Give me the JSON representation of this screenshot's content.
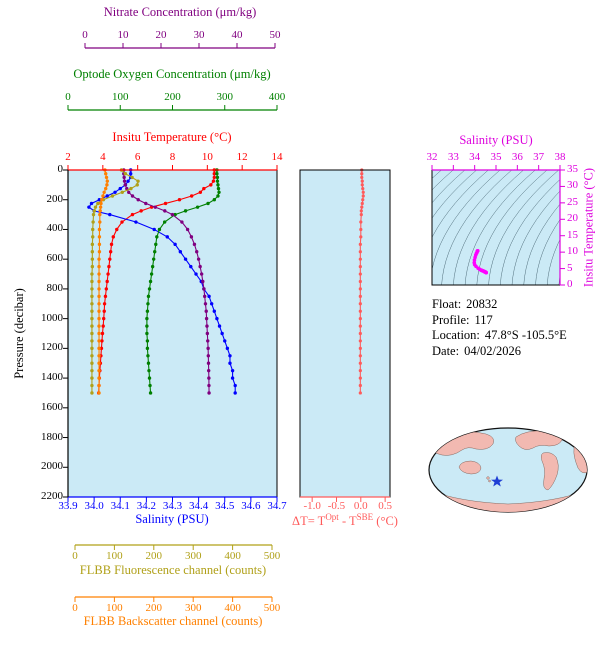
{
  "axes": {
    "pressure": {
      "title": "Pressure (decibar)",
      "min": 0,
      "max": 2200,
      "ticks": [
        0,
        200,
        400,
        600,
        800,
        1000,
        1200,
        1400,
        1600,
        1800,
        2000,
        2200
      ],
      "color": "#000000"
    },
    "nitrate": {
      "title": "Nitrate Concentration (μm/kg)",
      "min": 0,
      "max": 50,
      "ticks": [
        0,
        10,
        20,
        30,
        40,
        50
      ],
      "color": "#800080"
    },
    "oxygen": {
      "title": "Optode Oxygen Concentration (μm/kg)",
      "min": 0,
      "max": 400,
      "ticks": [
        0,
        100,
        200,
        300,
        400
      ],
      "color": "#008000"
    },
    "temperature": {
      "title": "Insitu Temperature (°C)",
      "min": 2,
      "max": 14,
      "ticks": [
        2,
        4,
        6,
        8,
        10,
        12,
        14
      ],
      "color": "#ff0000"
    },
    "salinity": {
      "title": "Salinity (PSU)",
      "min": 33.9,
      "max": 34.7,
      "ticks": [
        "33.9",
        "34.0",
        "34.1",
        "34.2",
        "34.3",
        "34.4",
        "34.5",
        "34.6",
        "34.7"
      ],
      "color": "#0000ff"
    },
    "fluorescence": {
      "title": "FLBB Fluorescence channel (counts)",
      "min": 0,
      "max": 500,
      "ticks": [
        0,
        100,
        200,
        300,
        400,
        500
      ],
      "color": "#b0a018"
    },
    "backscatter": {
      "title": "FLBB Backscatter channel (counts)",
      "min": 0,
      "max": 500,
      "ticks": [
        0,
        100,
        200,
        300,
        400,
        500
      ],
      "color": "#ff8000"
    },
    "delta_t": {
      "title_prefix": "ΔT= T",
      "title_sup1": "Opt",
      "title_mid": " - T",
      "title_sup2": "SBE",
      "title_suffix": " (°C)",
      "min": -1.25,
      "max": 0.6,
      "ticks": [
        "-1.0",
        "-0.5",
        "0.0",
        "0.5"
      ],
      "color": "#ff5a5a"
    },
    "ts_salinity": {
      "title": "Salinity (PSU)",
      "min": 32,
      "max": 38,
      "ticks": [
        32,
        33,
        34,
        35,
        36,
        37,
        38
      ],
      "color": "#dd00dd"
    },
    "ts_temperature": {
      "title": "Insitu Temperature (°C)",
      "min": 0,
      "max": 35,
      "ticks": [
        0,
        5,
        10,
        15,
        20,
        25,
        30,
        35
      ],
      "color": "#dd00dd"
    }
  },
  "info": {
    "rows": [
      {
        "label": "Float:",
        "value": "20832"
      },
      {
        "label": "Profile:",
        "value": "117"
      },
      {
        "label": "Location:",
        "value": "47.8°S -105.5°E"
      },
      {
        "label": "Date:",
        "value": "04/02/2026"
      }
    ]
  },
  "colors": {
    "panel_bg": "#cbeaf6",
    "map_ocean": "#cbeaf6",
    "map_land": "#f2b9b1",
    "map_star": "#1f3fd4",
    "contour": "#4f6d7a",
    "ts_track": "#ff00ff",
    "box": "#000000"
  },
  "chart_data": [
    {
      "type": "line",
      "id": "profile-panel",
      "title": "Multi-variable float profile",
      "ylabel": "Pressure (decibar)",
      "ylim": [
        0,
        2200
      ],
      "y_inverted": true,
      "grid": false,
      "pressure": [
        0,
        25,
        50,
        75,
        100,
        125,
        150,
        175,
        200,
        225,
        250,
        275,
        300,
        350,
        400,
        450,
        500,
        550,
        600,
        650,
        700,
        750,
        800,
        850,
        900,
        950,
        1000,
        1050,
        1100,
        1150,
        1200,
        1250,
        1300,
        1350,
        1400,
        1450,
        1500
      ],
      "series": [
        {
          "name": "Insitu Temperature (°C)",
          "axis": "temperature",
          "values": [
            10.4,
            10.4,
            10.4,
            10.35,
            10.2,
            9.8,
            9.6,
            9.1,
            8.4,
            7.6,
            6.8,
            6.2,
            5.7,
            5.1,
            4.8,
            4.6,
            4.5,
            4.45,
            4.4,
            4.35,
            4.3,
            4.25,
            4.2,
            4.15,
            4.1,
            4.08,
            4.05,
            4.02,
            3.98,
            3.95,
            3.92,
            3.89,
            3.86,
            3.83,
            3.8,
            3.78,
            3.76
          ]
        },
        {
          "name": "Salinity (PSU)",
          "axis": "salinity",
          "values": [
            34.14,
            34.14,
            34.14,
            34.13,
            34.12,
            34.1,
            34.08,
            34.05,
            34.02,
            33.99,
            33.98,
            34.0,
            34.06,
            34.16,
            34.23,
            34.28,
            34.31,
            34.33,
            34.35,
            34.37,
            34.39,
            34.41,
            34.42,
            34.44,
            34.45,
            34.46,
            34.47,
            34.48,
            34.49,
            34.5,
            34.51,
            34.52,
            34.52,
            34.53,
            34.53,
            34.54,
            34.54
          ]
        },
        {
          "name": "Optode Oxygen Concentration (μm/kg)",
          "axis": "oxygen",
          "values": [
            285,
            285,
            286,
            286,
            287,
            288,
            289,
            287,
            280,
            268,
            248,
            225,
            205,
            185,
            175,
            170,
            168,
            166,
            164,
            162,
            160,
            158,
            156,
            154,
            153,
            152,
            151,
            151,
            151,
            152,
            152,
            153,
            154,
            155,
            156,
            157,
            158
          ]
        },
        {
          "name": "Nitrate Concentration (μm/kg)",
          "axis": "nitrate",
          "values": [
            10.2,
            10.2,
            10.3,
            10.4,
            10.6,
            11.0,
            11.5,
            12.5,
            14.0,
            16.0,
            18.5,
            21.0,
            23.0,
            25.5,
            27.0,
            28.0,
            28.8,
            29.4,
            29.9,
            30.3,
            30.7,
            31.0,
            31.3,
            31.5,
            31.7,
            31.9,
            32.0,
            32.1,
            32.2,
            32.3,
            32.4,
            32.45,
            32.5,
            32.55,
            32.6,
            32.62,
            32.65
          ]
        },
        {
          "name": "FLBB Fluorescence channel (counts)",
          "axis": "fluorescence",
          "values": [
            118,
            128,
            145,
            160,
            158,
            142,
            120,
            95,
            72,
            58,
            52,
            49,
            47,
            46,
            45,
            45,
            44,
            44,
            44,
            44,
            43,
            43,
            43,
            43,
            43,
            43,
            43,
            43,
            43,
            43,
            43,
            43,
            43,
            43,
            43,
            43,
            43
          ]
        },
        {
          "name": "FLBB Backscatter channel (counts)",
          "axis": "backscatter",
          "values": [
            76,
            78,
            80,
            82,
            81,
            78,
            74,
            71,
            68,
            66,
            65,
            64,
            63,
            63,
            62,
            62,
            62,
            62,
            61,
            61,
            61,
            61,
            61,
            61,
            61,
            61,
            61,
            61,
            61,
            61,
            61,
            61,
            61,
            61,
            61,
            61,
            61
          ]
        }
      ]
    },
    {
      "type": "line",
      "id": "delta-t-panel",
      "xlabel": "ΔT= T^Opt - T^SBE (°C)",
      "xlim": [
        -1.25,
        0.6
      ],
      "ylim": [
        0,
        2200
      ],
      "y_inverted": true,
      "pressure": [
        0,
        25,
        50,
        75,
        100,
        125,
        150,
        175,
        200,
        225,
        250,
        275,
        300,
        350,
        400,
        450,
        500,
        550,
        600,
        650,
        700,
        750,
        800,
        850,
        900,
        950,
        1000,
        1050,
        1100,
        1150,
        1200,
        1250,
        1300,
        1350,
        1400,
        1450,
        1500
      ],
      "values": [
        0.02,
        0.02,
        0.02,
        0.03,
        0.03,
        0.04,
        0.05,
        0.05,
        0.04,
        0.03,
        0.02,
        0.01,
        0.01,
        0,
        0,
        0,
        -0.01,
        -0.01,
        -0.01,
        -0.01,
        -0.01,
        -0.01,
        -0.01,
        -0.01,
        -0.01,
        -0.01,
        -0.01,
        -0.01,
        -0.01,
        -0.01,
        -0.01,
        -0.01,
        -0.01,
        -0.01,
        -0.01,
        -0.01,
        -0.01
      ]
    },
    {
      "type": "scatter",
      "id": "ts-panel",
      "xlabel": "Salinity (PSU)",
      "ylabel": "Insitu Temperature (°C)",
      "xlim": [
        32,
        38
      ],
      "ylim": [
        0,
        35
      ],
      "salinity": [
        34.14,
        34.14,
        34.14,
        34.13,
        34.12,
        34.1,
        34.08,
        34.05,
        34.02,
        33.99,
        33.98,
        34.0,
        34.06,
        34.16,
        34.23,
        34.28,
        34.31,
        34.33,
        34.35,
        34.37,
        34.39,
        34.41,
        34.42,
        34.44,
        34.45,
        34.46,
        34.47,
        34.48,
        34.49,
        34.5,
        34.51,
        34.52,
        34.52,
        34.53,
        34.53,
        34.54,
        34.54
      ],
      "temperature": [
        10.4,
        10.4,
        10.4,
        10.35,
        10.2,
        9.8,
        9.6,
        9.1,
        8.4,
        7.6,
        6.8,
        6.2,
        5.7,
        5.1,
        4.8,
        4.6,
        4.5,
        4.45,
        4.4,
        4.35,
        4.3,
        4.25,
        4.2,
        4.15,
        4.1,
        4.08,
        4.05,
        4.02,
        3.98,
        3.95,
        3.92,
        3.89,
        3.86,
        3.83,
        3.8,
        3.78,
        3.76
      ],
      "isopycnal_contours": {
        "count": 18,
        "style": "thin"
      }
    }
  ]
}
